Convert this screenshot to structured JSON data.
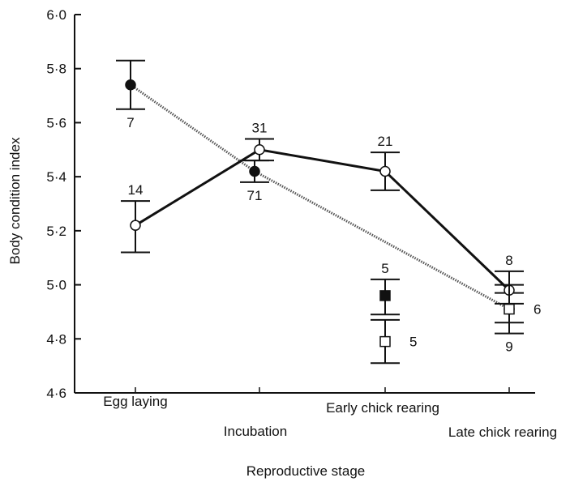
{
  "chart_data": {
    "type": "line",
    "title": "",
    "xlabel": "Reproductive stage",
    "ylabel": "Body condition index",
    "ylim": [
      4.6,
      6.0
    ],
    "yticks": [
      "4·6",
      "4·8",
      "5·0",
      "5·2",
      "5·4",
      "5·6",
      "5·8",
      "6·0"
    ],
    "categories": [
      "Egg laying",
      "Incubation",
      "Early chick rearing",
      "Late chick rearing"
    ],
    "grid": false,
    "series": [
      {
        "marker": "filled-circle",
        "line": "dotted",
        "points": [
          {
            "category": 0,
            "y": 5.74,
            "err_low": 5.65,
            "err_high": 5.83,
            "n": "7",
            "n_pos": "below"
          },
          {
            "category": 1,
            "y": 5.42,
            "err_low": 5.38,
            "err_high": 5.46,
            "n": "71",
            "n_pos": "below"
          },
          {
            "category": 3,
            "y": 4.91,
            "err_low": 4.86,
            "err_high": 4.97,
            "n": "6",
            "n_pos": "right"
          }
        ]
      },
      {
        "marker": "open-circle",
        "line": "solid",
        "points": [
          {
            "category": 0,
            "y": 5.22,
            "err_low": 5.12,
            "err_high": 5.31,
            "n": "14",
            "n_pos": "above"
          },
          {
            "category": 1,
            "y": 5.5,
            "err_low": 5.46,
            "err_high": 5.54,
            "n": "31",
            "n_pos": "above"
          },
          {
            "category": 2,
            "y": 5.42,
            "err_low": 5.35,
            "err_high": 5.49,
            "n": "21",
            "n_pos": "above"
          },
          {
            "category": 3,
            "y": 4.98,
            "err_low": 4.93,
            "err_high": 5.05,
            "n": "8",
            "n_pos": "above"
          }
        ]
      },
      {
        "marker": "filled-square",
        "line": "none",
        "points": [
          {
            "category": 2,
            "y": 4.96,
            "err_low": 4.89,
            "err_high": 5.02,
            "n": "5",
            "n_pos": "above"
          }
        ]
      },
      {
        "marker": "open-square",
        "line": "none",
        "points": [
          {
            "category": 2,
            "y": 4.79,
            "err_low": 4.71,
            "err_high": 4.87,
            "n": "5",
            "n_pos": "right"
          },
          {
            "category": 3,
            "y": 4.91,
            "err_low": 4.82,
            "err_high": 5.0,
            "n": "9",
            "n_pos": "below"
          }
        ]
      }
    ]
  }
}
